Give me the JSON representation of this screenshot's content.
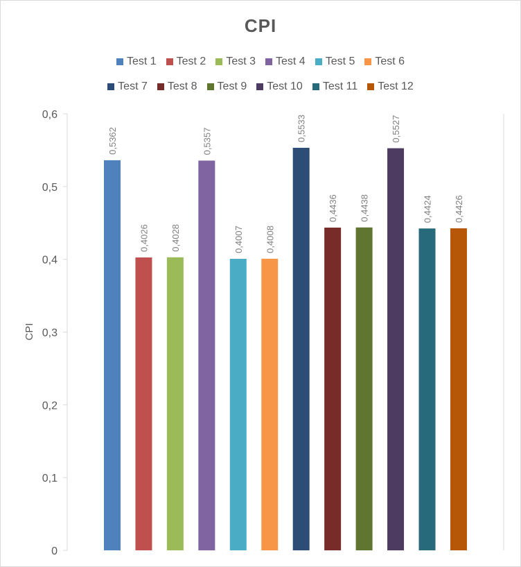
{
  "chart_data": {
    "type": "bar",
    "title": "CPI",
    "ylabel": "CPI",
    "xlabel": "",
    "ylim": [
      0,
      0.6
    ],
    "yticks": [
      "0",
      "0,1",
      "0,2",
      "0,3",
      "0,4",
      "0,5",
      "0,6"
    ],
    "grid": false,
    "legend_position": "top",
    "series": [
      {
        "name": "Test 1",
        "value": 0.5362,
        "label": "0,5362",
        "color": "#4F81BD"
      },
      {
        "name": "Test 2",
        "value": 0.4026,
        "label": "0,4026",
        "color": "#C0504D"
      },
      {
        "name": "Test 3",
        "value": 0.4028,
        "label": "0,4028",
        "color": "#9BBB59"
      },
      {
        "name": "Test 4",
        "value": 0.5357,
        "label": "0,5357",
        "color": "#8064A2"
      },
      {
        "name": "Test 5",
        "value": 0.4007,
        "label": "0,4007",
        "color": "#4BACC6"
      },
      {
        "name": "Test 6",
        "value": 0.4008,
        "label": "0,4008",
        "color": "#F79646"
      },
      {
        "name": "Test 7",
        "value": 0.5533,
        "label": "0,5533",
        "color": "#2C4D75"
      },
      {
        "name": "Test 8",
        "value": 0.4436,
        "label": "0,4436",
        "color": "#772C2A"
      },
      {
        "name": "Test 9",
        "value": 0.4438,
        "label": "0,4438",
        "color": "#5F7530"
      },
      {
        "name": "Test 10",
        "value": 0.5527,
        "label": "0,5527",
        "color": "#4D3B62"
      },
      {
        "name": "Test 11",
        "value": 0.4424,
        "label": "0,4424",
        "color": "#276A7C"
      },
      {
        "name": "Test 12",
        "value": 0.4426,
        "label": "0,4426",
        "color": "#B65708"
      }
    ]
  }
}
